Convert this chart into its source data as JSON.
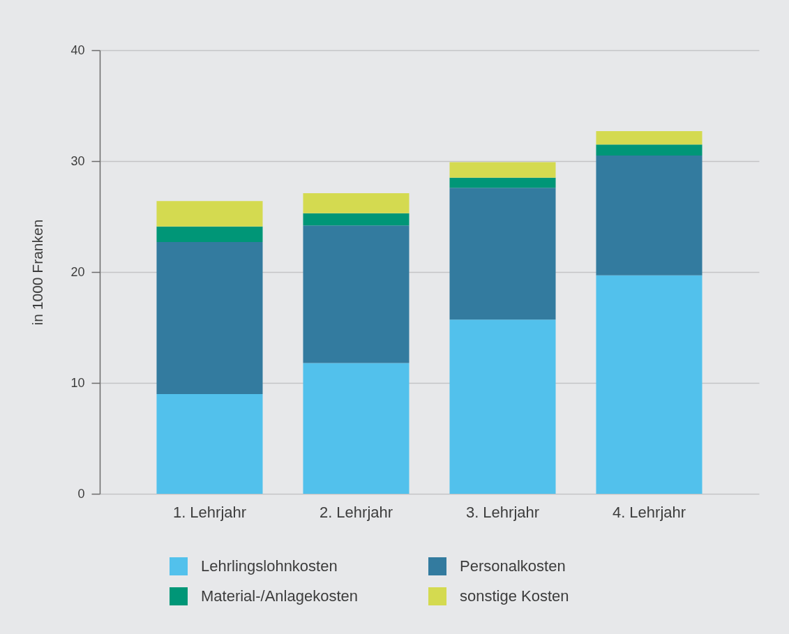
{
  "chart_data": {
    "type": "bar",
    "stacked": true,
    "ylabel": "in 1000 Franken",
    "categories": [
      "1. Lehrjahr",
      "2. Lehrjahr",
      "3. Lehrjahr",
      "4. Lehrjahr"
    ],
    "series": [
      {
        "name": "Lehrlingslohnkosten",
        "color": "#52c1ec",
        "values": [
          9.0,
          11.8,
          15.7,
          19.7
        ]
      },
      {
        "name": "Personalkosten",
        "color": "#337b9f",
        "values": [
          13.7,
          12.4,
          11.9,
          10.8
        ]
      },
      {
        "name": "Material-/Anlagekosten",
        "color": "#009677",
        "values": [
          1.4,
          1.1,
          0.9,
          1.0
        ]
      },
      {
        "name": "sonstige Kosten",
        "color": "#d4da50",
        "values": [
          2.3,
          1.8,
          1.4,
          1.2
        ]
      }
    ],
    "ylim": [
      0,
      40
    ],
    "yticks": [
      0,
      10,
      20,
      30,
      40
    ],
    "grid": "y",
    "legend": "bottom"
  }
}
